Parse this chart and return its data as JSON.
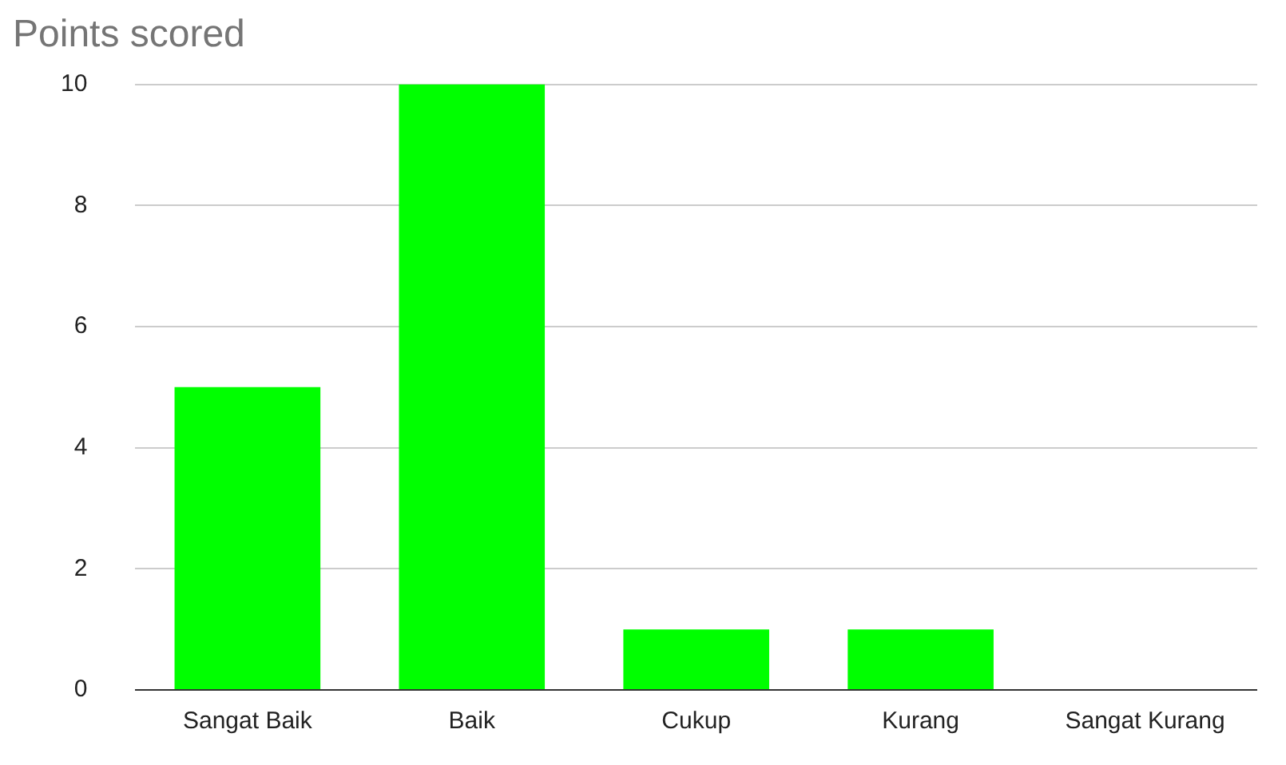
{
  "chart_data": {
    "type": "bar",
    "title": "Points scored",
    "categories": [
      "Sangat Baik",
      "Baik",
      "Cukup",
      "Kurang",
      "Sangat Kurang"
    ],
    "values": [
      5,
      10,
      1,
      1,
      0
    ],
    "color": "#00ff00",
    "ylim": [
      0,
      10
    ],
    "yticks": [
      0,
      2,
      4,
      6,
      8,
      10
    ],
    "grid": "y",
    "legend": false
  }
}
